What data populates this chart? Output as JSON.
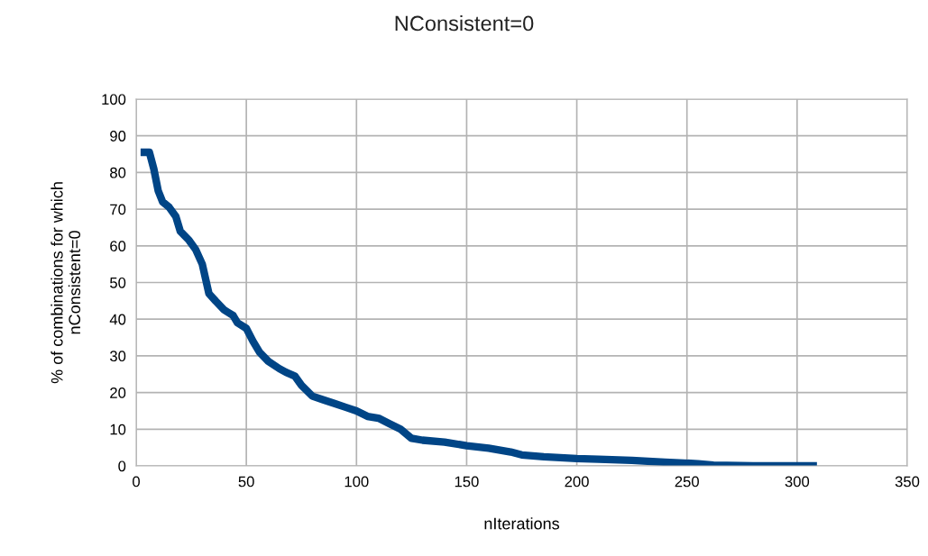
{
  "chart_data": {
    "type": "line",
    "title": "NConsistent=0",
    "xlabel": "nIterations",
    "ylabel": "% of combinations for which\nnConsistent=0",
    "series": [
      {
        "color": "#004586",
        "x": [
          2,
          6,
          8,
          10,
          12,
          15,
          18,
          20,
          24,
          27,
          30,
          33,
          36,
          40,
          44,
          46,
          50,
          53,
          56,
          60,
          65,
          68,
          72,
          75,
          80,
          85,
          90,
          95,
          100,
          105,
          110,
          115,
          120,
          125,
          130,
          140,
          150,
          160,
          170,
          175,
          185,
          200,
          210,
          225,
          240,
          255,
          262,
          280,
          309
        ],
        "values": [
          85.5,
          85.5,
          81,
          75,
          72,
          70.5,
          68,
          64,
          61.5,
          59,
          55,
          47,
          45,
          42.5,
          41,
          39,
          37.5,
          34,
          31,
          28.5,
          26.5,
          25.5,
          24.5,
          22,
          19,
          18,
          17,
          16,
          15,
          13.5,
          13,
          11.5,
          10,
          7.5,
          7,
          6.5,
          5.5,
          4.8,
          3.8,
          3,
          2.5,
          2,
          1.8,
          1.5,
          1,
          0.6,
          0.2,
          0,
          0
        ]
      }
    ],
    "xlim": [
      0,
      350
    ],
    "xticks": [
      0,
      50,
      100,
      150,
      200,
      250,
      300,
      350
    ],
    "ylim": [
      0,
      100
    ],
    "yticks": [
      0,
      10,
      20,
      30,
      40,
      50,
      60,
      70,
      80,
      90,
      100
    ],
    "grid": true,
    "legend": false,
    "marker": "none",
    "line_style": "solid"
  }
}
